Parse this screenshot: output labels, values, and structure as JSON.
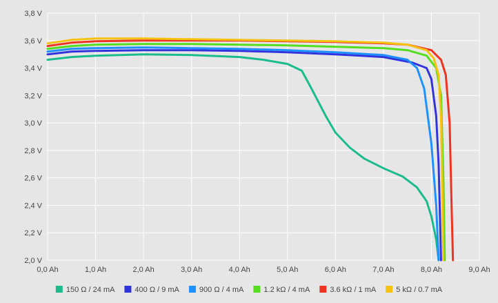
{
  "chart_data": {
    "type": "line",
    "title": "",
    "xlabel": "",
    "ylabel": "",
    "xlim": [
      0,
      9
    ],
    "ylim": [
      2.0,
      3.8
    ],
    "grid": true,
    "legend_position": "bottom",
    "x_ticks": [
      "0,0 Ah",
      "1,0 Ah",
      "2,0 Ah",
      "3,0 Ah",
      "4,0 Ah",
      "5,0 Ah",
      "6,0 Ah",
      "7,0 Ah",
      "8,0 Ah",
      "9,0 Ah"
    ],
    "y_ticks": [
      "2,0 V",
      "2,2 V",
      "2,4 V",
      "2,6 V",
      "2,8 V",
      "3,0 V",
      "3,2 V",
      "3,4 V",
      "3,6 V",
      "3,8 V"
    ],
    "series": [
      {
        "name": "150 Ω / 24 mA",
        "color": "#1abc8c",
        "points": [
          [
            0,
            3.46
          ],
          [
            0.5,
            3.48
          ],
          [
            1,
            3.49
          ],
          [
            2,
            3.5
          ],
          [
            3,
            3.495
          ],
          [
            4,
            3.48
          ],
          [
            4.5,
            3.46
          ],
          [
            5,
            3.43
          ],
          [
            5.3,
            3.38
          ],
          [
            5.5,
            3.25
          ],
          [
            5.8,
            3.05
          ],
          [
            6.0,
            2.93
          ],
          [
            6.3,
            2.82
          ],
          [
            6.6,
            2.74
          ],
          [
            7.0,
            2.67
          ],
          [
            7.4,
            2.61
          ],
          [
            7.7,
            2.53
          ],
          [
            7.9,
            2.43
          ],
          [
            8.0,
            2.32
          ],
          [
            8.1,
            2.15
          ],
          [
            8.15,
            2.0
          ]
        ]
      },
      {
        "name": "400 Ω / 9 mA",
        "color": "#3333dd",
        "points": [
          [
            0,
            3.5
          ],
          [
            0.5,
            3.52
          ],
          [
            1,
            3.525
          ],
          [
            2,
            3.53
          ],
          [
            3,
            3.53
          ],
          [
            4,
            3.525
          ],
          [
            5,
            3.515
          ],
          [
            6,
            3.5
          ],
          [
            7,
            3.48
          ],
          [
            7.6,
            3.44
          ],
          [
            7.9,
            3.4
          ],
          [
            8.0,
            3.32
          ],
          [
            8.1,
            3.05
          ],
          [
            8.15,
            2.7
          ],
          [
            8.18,
            2.3
          ],
          [
            8.2,
            2.0
          ]
        ]
      },
      {
        "name": "900 Ω / 4 mA",
        "color": "#1e90ff",
        "points": [
          [
            0,
            3.52
          ],
          [
            0.5,
            3.54
          ],
          [
            1,
            3.545
          ],
          [
            2,
            3.55
          ],
          [
            3,
            3.545
          ],
          [
            4,
            3.54
          ],
          [
            5,
            3.53
          ],
          [
            6,
            3.515
          ],
          [
            7,
            3.495
          ],
          [
            7.5,
            3.46
          ],
          [
            7.7,
            3.4
          ],
          [
            7.85,
            3.25
          ],
          [
            8.0,
            2.85
          ],
          [
            8.1,
            2.4
          ],
          [
            8.15,
            2.0
          ]
        ]
      },
      {
        "name": "1.2 kΩ / 4 mA",
        "color": "#55dd22",
        "points": [
          [
            0,
            3.54
          ],
          [
            0.5,
            3.56
          ],
          [
            1,
            3.57
          ],
          [
            2,
            3.575
          ],
          [
            3,
            3.575
          ],
          [
            4,
            3.57
          ],
          [
            5,
            3.565
          ],
          [
            6,
            3.555
          ],
          [
            7,
            3.545
          ],
          [
            7.5,
            3.53
          ],
          [
            7.9,
            3.49
          ],
          [
            8.1,
            3.4
          ],
          [
            8.2,
            3.2
          ],
          [
            8.25,
            2.6
          ],
          [
            8.28,
            2.0
          ]
        ]
      },
      {
        "name": "3.6 kΩ / 1 mA",
        "color": "#ee3322",
        "points": [
          [
            0,
            3.56
          ],
          [
            0.5,
            3.585
          ],
          [
            1,
            3.595
          ],
          [
            2,
            3.6
          ],
          [
            3,
            3.6
          ],
          [
            4,
            3.6
          ],
          [
            5,
            3.595
          ],
          [
            6,
            3.59
          ],
          [
            7,
            3.58
          ],
          [
            7.5,
            3.57
          ],
          [
            8.0,
            3.53
          ],
          [
            8.2,
            3.46
          ],
          [
            8.3,
            3.35
          ],
          [
            8.38,
            3.0
          ],
          [
            8.42,
            2.4
          ],
          [
            8.45,
            2.0
          ]
        ]
      },
      {
        "name": "5 kΩ / 0.7 mA",
        "color": "#f5c211",
        "points": [
          [
            0,
            3.58
          ],
          [
            0.5,
            3.605
          ],
          [
            1,
            3.615
          ],
          [
            2,
            3.615
          ],
          [
            3,
            3.61
          ],
          [
            4,
            3.605
          ],
          [
            5,
            3.6
          ],
          [
            6,
            3.595
          ],
          [
            7,
            3.585
          ],
          [
            7.5,
            3.57
          ],
          [
            7.9,
            3.53
          ],
          [
            8.05,
            3.47
          ],
          [
            8.15,
            3.35
          ],
          [
            8.2,
            3.05
          ],
          [
            8.23,
            2.5
          ],
          [
            8.25,
            2.0
          ]
        ]
      }
    ]
  }
}
